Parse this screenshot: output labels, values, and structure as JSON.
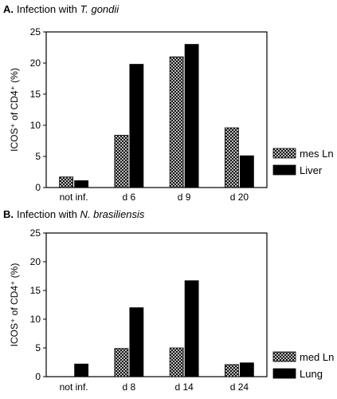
{
  "chart_data": [
    {
      "type": "bar",
      "panel_letter": "A.",
      "title_prefix": "Infection with ",
      "title_italic": "T. gondii",
      "ylabel": "ICOS⁺ of CD4⁺ (%)",
      "xlabel": "",
      "ylim": [
        0,
        25
      ],
      "yticks": [
        "0",
        "5",
        "10",
        "15",
        "20",
        "25"
      ],
      "categories": [
        "not inf.",
        "d 6",
        "d 9",
        "d 20"
      ],
      "series": [
        {
          "name": "mes Ln",
          "pattern": "crosshatch",
          "values": [
            1.7,
            8.4,
            21.0,
            9.6
          ]
        },
        {
          "name": "Liver",
          "pattern": "solid",
          "values": [
            1.1,
            19.8,
            23.0,
            5.1
          ]
        }
      ],
      "grid": false,
      "legend_position": "right"
    },
    {
      "type": "bar",
      "panel_letter": "B.",
      "title_prefix": "Infection with ",
      "title_italic": "N. brasiliensis",
      "ylabel": "ICOS⁺ of CD4⁺ (%)",
      "xlabel": "",
      "ylim": [
        0,
        25
      ],
      "yticks": [
        "0",
        "5",
        "10",
        "15",
        "20",
        "25"
      ],
      "categories": [
        "not inf.",
        "d 8",
        "d 14",
        "d 24"
      ],
      "series": [
        {
          "name": "med Ln",
          "pattern": "crosshatch",
          "values": [
            0,
            4.9,
            5.0,
            2.1
          ]
        },
        {
          "name": "Lung",
          "pattern": "solid",
          "values": [
            2.2,
            12.0,
            16.7,
            2.4
          ]
        }
      ],
      "grid": false,
      "legend_position": "right"
    }
  ]
}
